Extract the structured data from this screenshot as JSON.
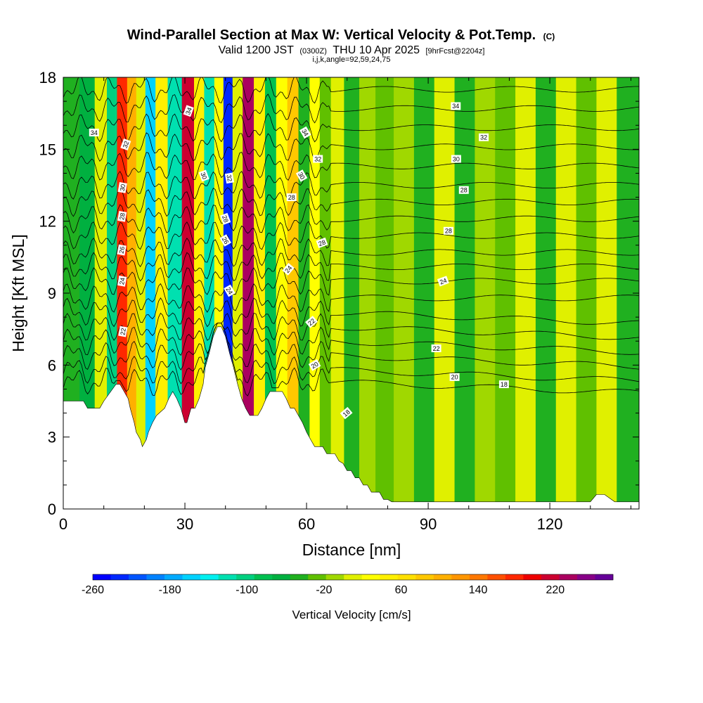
{
  "header": {
    "title_main": "Wind-Parallel Section at Max W: Vertical Velocity & Pot.Temp.",
    "title_suffix": "(C)",
    "valid_prefix": "Valid 1200 JST",
    "valid_zulu": "(0300Z)",
    "valid_date": "THU 10 Apr 2025",
    "valid_fcst": "[9hrFcst@2204z]",
    "grid_info": "i,j,k,angle=92,59,24,75"
  },
  "chart_data": {
    "type": "heatmap",
    "xlabel": "Distance [nm]",
    "ylabel": "Height [Kft MSL]",
    "xlim": [
      0,
      142
    ],
    "ylim": [
      0,
      18
    ],
    "x_ticks": [
      0,
      30,
      60,
      90,
      120
    ],
    "x_tick_labels": [
      "0",
      "30",
      "60",
      "90",
      "120"
    ],
    "y_ticks": [
      0,
      3,
      6,
      9,
      12,
      15,
      18
    ],
    "y_tick_labels": [
      "0",
      "3",
      "6",
      "9",
      "12",
      "15",
      "18"
    ],
    "colorbar": {
      "label": "Vertical Velocity [cm/s]",
      "min": -260,
      "max": 280,
      "step": 20,
      "tick_values": [
        -260,
        -180,
        -100,
        -20,
        60,
        140,
        220
      ],
      "tick_labels": [
        "-260",
        "-180",
        "-100",
        "-20",
        "60",
        "140",
        "220"
      ],
      "colors": [
        "#0000ff",
        "#0028ff",
        "#0055ff",
        "#0082ff",
        "#00aaff",
        "#00d2ff",
        "#00f0f0",
        "#00e0b0",
        "#00d080",
        "#00c050",
        "#00b040",
        "#20b020",
        "#60c000",
        "#a0d800",
        "#e0f000",
        "#ffff00",
        "#fff000",
        "#ffe000",
        "#ffc800",
        "#ffb000",
        "#ff9600",
        "#ff7800",
        "#ff5000",
        "#ff2800",
        "#ee0000",
        "#cc0030",
        "#aa0060",
        "#880088",
        "#660099"
      ]
    },
    "terrain": {
      "x": [
        0,
        5,
        6,
        9,
        10,
        13,
        14,
        16,
        16.5,
        17.5,
        18,
        19,
        19.5,
        20.5,
        21,
        22,
        23,
        25,
        26,
        27,
        28,
        29,
        30,
        30.5,
        31,
        31.5,
        32.5,
        33.5,
        34.5,
        35,
        36,
        37,
        38,
        39,
        40,
        41,
        42,
        43,
        44,
        45,
        46,
        47,
        48,
        49,
        50,
        51,
        52,
        53,
        54,
        55,
        56,
        57,
        58,
        59,
        60,
        61,
        62,
        63,
        64,
        65,
        66,
        67,
        68,
        69,
        70,
        71,
        72,
        73,
        74,
        75,
        76,
        77,
        78,
        79,
        80,
        81,
        82,
        83,
        84,
        86,
        88,
        90,
        100,
        110,
        120,
        130,
        131.5,
        133.5,
        136,
        142
      ],
      "height_kft": [
        4.5,
        4.5,
        4.2,
        4.2,
        4.5,
        5.2,
        5.2,
        4.6,
        4.2,
        3.6,
        3.2,
        2.9,
        2.6,
        2.9,
        3.2,
        3.6,
        3.9,
        4.2,
        4.6,
        4.9,
        4.6,
        4.2,
        3.6,
        3.6,
        3.9,
        4.2,
        4.2,
        4.6,
        5.2,
        5.9,
        6.5,
        7.2,
        7.6,
        7.6,
        7.2,
        6.5,
        5.9,
        5.2,
        4.6,
        4.2,
        3.9,
        3.9,
        3.9,
        4.2,
        4.6,
        4.9,
        4.9,
        4.9,
        4.9,
        4.6,
        4.2,
        4.2,
        3.9,
        3.6,
        3.2,
        2.9,
        2.6,
        2.6,
        2.6,
        2.3,
        2.3,
        2.3,
        2.0,
        1.9,
        1.6,
        1.6,
        1.3,
        1.3,
        1.0,
        1.0,
        0.7,
        0.7,
        0.7,
        0.4,
        0.4,
        0.3,
        0.3,
        0.3,
        0.3,
        0.3,
        0.3,
        0.3,
        0.3,
        0.3,
        0.3,
        0.3,
        0.6,
        0.6,
        0.3,
        0.3
      ]
    },
    "w_columns_cm_s": [
      {
        "x": 2,
        "w": -40,
        "top": 4.5
      },
      {
        "x": 6,
        "w": -60,
        "top": 4.2
      },
      {
        "x": 9.5,
        "w": 20,
        "top": 4.2
      },
      {
        "x": 12,
        "w": -90,
        "top": 5.0
      },
      {
        "x": 14.5,
        "w": 200,
        "top": 5.2
      },
      {
        "x": 17,
        "w": 120,
        "top": 3.6
      },
      {
        "x": 19,
        "w": 20,
        "top": 2.6
      },
      {
        "x": 21.5,
        "w": -150,
        "top": 3.6
      },
      {
        "x": 24,
        "w": 60,
        "top": 4.2
      },
      {
        "x": 27.5,
        "w": -110,
        "top": 4.6
      },
      {
        "x": 31,
        "w": 240,
        "top": 3.6
      },
      {
        "x": 33.5,
        "w": 60,
        "top": 4.6
      },
      {
        "x": 36,
        "w": -120,
        "top": 6.5
      },
      {
        "x": 38.5,
        "w": 40,
        "top": 7.6
      },
      {
        "x": 40.5,
        "w": -240,
        "top": 7.2
      },
      {
        "x": 43,
        "w": 20,
        "top": 5.2
      },
      {
        "x": 45.5,
        "w": 260,
        "top": 3.9
      },
      {
        "x": 48.5,
        "w": 60,
        "top": 4.2
      },
      {
        "x": 51,
        "w": -80,
        "top": 4.9
      },
      {
        "x": 54,
        "w": 40,
        "top": 4.6
      },
      {
        "x": 56.5,
        "w": 100,
        "top": 4.2
      },
      {
        "x": 59.5,
        "w": -40,
        "top": 3.2
      },
      {
        "x": 62,
        "w": 40,
        "top": 2.6
      },
      {
        "x": 64.5,
        "w": -20,
        "top": 2.3
      },
      {
        "x": 67.5,
        "w": 20,
        "top": 1.9
      },
      {
        "x": 71,
        "w": -30,
        "top": 1.3
      },
      {
        "x": 75,
        "w": 10,
        "top": 0.7
      },
      {
        "x": 79,
        "w": -20,
        "top": 0.3
      },
      {
        "x": 84,
        "w": 10,
        "top": 0.3
      },
      {
        "x": 89,
        "w": -30,
        "top": 0.3
      },
      {
        "x": 94,
        "w": 20,
        "top": 0.3
      },
      {
        "x": 99,
        "w": -30,
        "top": 0.3
      },
      {
        "x": 104,
        "w": 10,
        "top": 0.3
      },
      {
        "x": 109,
        "w": -20,
        "top": 0.3
      },
      {
        "x": 114,
        "w": 20,
        "top": 0.3
      },
      {
        "x": 119,
        "w": -30,
        "top": 0.3
      },
      {
        "x": 124,
        "w": 30,
        "top": 0.3
      },
      {
        "x": 129,
        "w": -20,
        "top": 0.3
      },
      {
        "x": 134,
        "w": 20,
        "top": 0.6
      },
      {
        "x": 139,
        "w": -30,
        "top": 0.3
      }
    ],
    "theta_contours": [
      {
        "value": 18,
        "base_height_kft": 5.3
      },
      {
        "value": 19,
        "base_height_kft": 5.8
      },
      {
        "value": 20,
        "base_height_kft": 6.4
      },
      {
        "value": 21,
        "base_height_kft": 7.0
      },
      {
        "value": 22,
        "base_height_kft": 7.6
      },
      {
        "value": 23,
        "base_height_kft": 8.2
      },
      {
        "value": 24,
        "base_height_kft": 8.8
      },
      {
        "value": 25,
        "base_height_kft": 9.5
      },
      {
        "value": 26,
        "base_height_kft": 10.1
      },
      {
        "value": 27,
        "base_height_kft": 10.7
      },
      {
        "value": 28,
        "base_height_kft": 11.4
      },
      {
        "value": 29,
        "base_height_kft": 12.1
      },
      {
        "value": 30,
        "base_height_kft": 12.8
      },
      {
        "value": 31,
        "base_height_kft": 13.5
      },
      {
        "value": 32,
        "base_height_kft": 14.3
      },
      {
        "value": 33,
        "base_height_kft": 15.1
      },
      {
        "value": 34,
        "base_height_kft": 15.9
      },
      {
        "value": 35,
        "base_height_kft": 16.7
      },
      {
        "value": 36,
        "base_height_kft": 17.5
      }
    ],
    "contour_labels": [
      {
        "text": "34",
        "x": 7.6,
        "y": 15.7,
        "angle": 0
      },
      {
        "text": "32",
        "x": 15.4,
        "y": 15.2,
        "angle": -70
      },
      {
        "text": "30",
        "x": 14.6,
        "y": 13.4,
        "angle": -80
      },
      {
        "text": "28",
        "x": 14.5,
        "y": 12.2,
        "angle": -80
      },
      {
        "text": "26",
        "x": 14.4,
        "y": 10.8,
        "angle": -80
      },
      {
        "text": "24",
        "x": 14.5,
        "y": 9.5,
        "angle": -80
      },
      {
        "text": "22",
        "x": 14.7,
        "y": 7.4,
        "angle": -80
      },
      {
        "text": "34",
        "x": 30.9,
        "y": 16.6,
        "angle": -70
      },
      {
        "text": "30",
        "x": 34.7,
        "y": 13.9,
        "angle": 70
      },
      {
        "text": "32",
        "x": 41.0,
        "y": 13.8,
        "angle": 80
      },
      {
        "text": "28",
        "x": 40.0,
        "y": 12.1,
        "angle": 70
      },
      {
        "text": "26",
        "x": 40.0,
        "y": 11.2,
        "angle": 60
      },
      {
        "text": "24",
        "x": 41.0,
        "y": 9.1,
        "angle": 60
      },
      {
        "text": "34",
        "x": 59.7,
        "y": 15.7,
        "angle": 60
      },
      {
        "text": "32",
        "x": 62.8,
        "y": 14.6,
        "angle": 0
      },
      {
        "text": "30",
        "x": 58.8,
        "y": 13.9,
        "angle": 60
      },
      {
        "text": "28",
        "x": 56.3,
        "y": 13.0,
        "angle": 0
      },
      {
        "text": "28",
        "x": 63.8,
        "y": 11.1,
        "angle": -20
      },
      {
        "text": "24",
        "x": 55.5,
        "y": 10.0,
        "angle": -50
      },
      {
        "text": "22",
        "x": 61.2,
        "y": 7.8,
        "angle": -40
      },
      {
        "text": "20",
        "x": 62.0,
        "y": 6.0,
        "angle": -30
      },
      {
        "text": "18",
        "x": 69.8,
        "y": 4.0,
        "angle": -40
      },
      {
        "text": "34",
        "x": 96.8,
        "y": 16.8,
        "angle": 0
      },
      {
        "text": "32",
        "x": 103.7,
        "y": 15.5,
        "angle": 0
      },
      {
        "text": "30",
        "x": 96.9,
        "y": 14.6,
        "angle": 0
      },
      {
        "text": "28",
        "x": 98.8,
        "y": 13.3,
        "angle": 0
      },
      {
        "text": "28",
        "x": 95.0,
        "y": 11.6,
        "angle": 0
      },
      {
        "text": "24",
        "x": 93.7,
        "y": 9.5,
        "angle": -20
      },
      {
        "text": "22",
        "x": 92.0,
        "y": 6.7,
        "angle": 0
      },
      {
        "text": "20",
        "x": 96.5,
        "y": 5.5,
        "angle": 0
      },
      {
        "text": "18",
        "x": 108.7,
        "y": 5.2,
        "angle": 0
      }
    ]
  }
}
